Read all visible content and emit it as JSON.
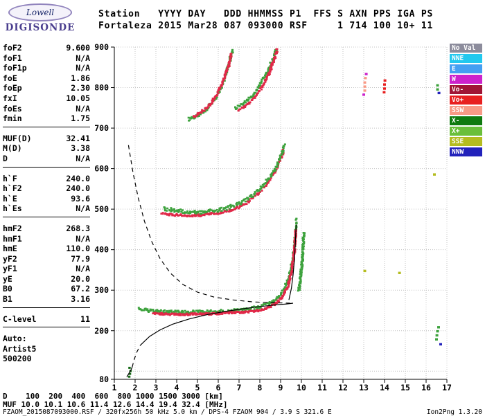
{
  "logo": {
    "line1": "Lowell",
    "line2": "DIGISONDE"
  },
  "header": {
    "line1": "Station   YYYY DAY   DDD HHMMSS P1  FFS S AXN PPS IGA PS",
    "line2": "Fortaleza 2015 Mar28 087 093000 RSF     1 714 100 10+ 11"
  },
  "params": {
    "groups": [
      {
        "rule": true,
        "rows": [
          {
            "l": "foF2",
            "v": "9.600"
          },
          {
            "l": "foF1",
            "v": "N/A"
          },
          {
            "l": "foF1p",
            "v": "N/A"
          },
          {
            "l": "foE",
            "v": "1.86"
          },
          {
            "l": "foEp",
            "v": "2.30"
          },
          {
            "l": "fxI",
            "v": "10.05"
          },
          {
            "l": "foEs",
            "v": "N/A"
          },
          {
            "l": "fmin",
            "v": "1.75"
          }
        ]
      },
      {
        "rule": true,
        "rows": [
          {
            "l": "MUF(D)",
            "v": "32.41"
          },
          {
            "l": "M(D)",
            "v": "3.38"
          },
          {
            "l": "D",
            "v": "N/A"
          }
        ]
      },
      {
        "rule": true,
        "rows": [
          {
            "l": "h`F",
            "v": "240.0"
          },
          {
            "l": "h`F2",
            "v": "240.0"
          },
          {
            "l": "h`E",
            "v": "93.6"
          },
          {
            "l": "h`Es",
            "v": "N/A"
          }
        ]
      },
      {
        "rule": true,
        "rows": [
          {
            "l": "hmF2",
            "v": "268.3"
          },
          {
            "l": "hmF1",
            "v": "N/A"
          },
          {
            "l": "hmE",
            "v": "110.0"
          },
          {
            "l": "yF2",
            "v": "77.9"
          },
          {
            "l": "yF1",
            "v": "N/A"
          },
          {
            "l": "yE",
            "v": "20.0"
          },
          {
            "l": "B0",
            "v": "67.2"
          },
          {
            "l": "B1",
            "v": "3.16"
          }
        ]
      },
      {
        "rule": true,
        "rows": [
          {
            "l": "C-level",
            "v": "11"
          }
        ]
      },
      {
        "rule": false,
        "rows": [
          {
            "l": "Auto:",
            "v": ""
          },
          {
            "l": "Artist5",
            "v": ""
          },
          {
            "l": "500200",
            "v": ""
          }
        ]
      }
    ]
  },
  "legend": {
    "items": [
      {
        "label": "No Val",
        "color": "#8c8c9c"
      },
      {
        "label": "NNE",
        "color": "#22c8ee"
      },
      {
        "label": "E",
        "color": "#449ff2"
      },
      {
        "label": "W",
        "color": "#cc22cc"
      },
      {
        "label": "Vo-",
        "color": "#a01535"
      },
      {
        "label": "Vo+",
        "color": "#e82020"
      },
      {
        "label": "SSW",
        "color": "#f89a86"
      },
      {
        "label": "X-",
        "color": "#0f7a0f"
      },
      {
        "label": "X+",
        "color": "#6abf3a"
      },
      {
        "label": "SSE",
        "color": "#b4bc20"
      },
      {
        "label": "NNW",
        "color": "#2222bb"
      }
    ]
  },
  "bottom": {
    "d_row": "D    100  200  400  600  800 1000 1500 3000 [km]",
    "muf_row": "MUF 10.0 10.1 10.6 11.4 12.6 14.4 19.4 32.4 [MHz]",
    "file_info": "FZAOM_2015087093000.RSF / 320fx256h 50 kHz 5.0 km / DPS-4 FZAOM 904 / 3.9 S 321.6 E",
    "version": "Ion2Png 1.3.20"
  },
  "chart_data": {
    "type": "scatter",
    "title": "Fortaleza digisonde ionogram 2015 Mar28 09:30:00",
    "xlabel": "[MHz]",
    "ylabel": "[km]",
    "xlim": [
      1,
      17
    ],
    "ylim": [
      80,
      900
    ],
    "xticks": [
      1,
      2,
      3,
      4,
      5,
      6,
      7,
      8,
      9,
      10,
      11,
      12,
      13,
      14,
      15,
      16,
      17
    ],
    "grid_y": [
      100,
      200,
      300,
      400,
      500,
      600,
      700,
      800,
      900
    ],
    "ytick_labels": [
      {
        "v": 900,
        "t": "900"
      },
      {
        "v": 800,
        "t": "800"
      },
      {
        "v": 700,
        "t": "700"
      },
      {
        "v": 600,
        "t": "600"
      },
      {
        "v": 500,
        "t": "500"
      },
      {
        "v": 400,
        "t": "400"
      },
      {
        "v": 300,
        "t": "300"
      },
      {
        "v": 200,
        "t": "200"
      },
      {
        "v": 80,
        "t": "80"
      }
    ],
    "grid_color": "#c4c4c4",
    "axis_color": "#000000",
    "muf_table": {
      "distance_km": [
        100,
        200,
        400,
        600,
        800,
        1000,
        1500,
        3000
      ],
      "muf_mhz": [
        10.0,
        10.1,
        10.6,
        11.4,
        12.6,
        14.4,
        19.4,
        32.4
      ]
    },
    "series": [
      {
        "name": "hop1-green",
        "color": "#3da23d",
        "mode": "scatter",
        "spread": 7,
        "step": 0.07,
        "pts": [
          [
            2.2,
            254
          ],
          [
            2.6,
            250
          ],
          [
            3.0,
            248
          ],
          [
            3.6,
            247
          ],
          [
            4.2,
            246
          ],
          [
            5.0,
            247
          ],
          [
            5.8,
            248
          ],
          [
            6.6,
            250
          ],
          [
            7.4,
            254
          ],
          [
            8.0,
            259
          ],
          [
            8.5,
            268
          ],
          [
            8.9,
            283
          ],
          [
            9.2,
            305
          ],
          [
            9.42,
            335
          ],
          [
            9.58,
            372
          ],
          [
            9.68,
            415
          ],
          [
            9.74,
            455
          ],
          [
            9.78,
            478
          ]
        ]
      },
      {
        "name": "hop1-red",
        "color": "#e02848",
        "mode": "scatter",
        "spread": 5,
        "step": 0.055,
        "pts": [
          [
            2.9,
            243
          ],
          [
            3.5,
            241
          ],
          [
            4.2,
            240
          ],
          [
            5.0,
            241
          ],
          [
            5.8,
            242
          ],
          [
            6.6,
            244
          ],
          [
            7.3,
            246
          ],
          [
            7.9,
            250
          ],
          [
            8.4,
            257
          ],
          [
            8.8,
            268
          ],
          [
            9.1,
            285
          ],
          [
            9.35,
            310
          ],
          [
            9.52,
            342
          ],
          [
            9.63,
            380
          ],
          [
            9.7,
            420
          ],
          [
            9.74,
            450
          ]
        ]
      },
      {
        "name": "hop1-xmode-green",
        "color": "#3da23d",
        "mode": "scatter",
        "spread": 5,
        "step": 0.05,
        "pts": [
          [
            9.88,
            300
          ],
          [
            9.97,
            335
          ],
          [
            10.04,
            372
          ],
          [
            10.09,
            410
          ],
          [
            10.12,
            445
          ]
        ]
      },
      {
        "name": "hop2-red",
        "color": "#e02848",
        "mode": "scatter",
        "spread": 6,
        "step": 0.065,
        "pts": [
          [
            3.3,
            489
          ],
          [
            3.9,
            486
          ],
          [
            4.5,
            484
          ],
          [
            5.1,
            485
          ],
          [
            5.7,
            488
          ],
          [
            6.3,
            493
          ],
          [
            6.9,
            503
          ],
          [
            7.4,
            517
          ],
          [
            7.9,
            537
          ],
          [
            8.3,
            560
          ],
          [
            8.7,
            590
          ],
          [
            9.0,
            622
          ],
          [
            9.15,
            648
          ]
        ]
      },
      {
        "name": "hop2-green",
        "color": "#3da23d",
        "mode": "scatter",
        "spread": 9,
        "step": 0.075,
        "pts": [
          [
            3.4,
            501
          ],
          [
            4.0,
            496
          ],
          [
            4.6,
            493
          ],
          [
            5.2,
            493
          ],
          [
            5.8,
            496
          ],
          [
            6.4,
            502
          ],
          [
            7.0,
            513
          ],
          [
            7.5,
            528
          ],
          [
            8.0,
            549
          ],
          [
            8.4,
            573
          ],
          [
            8.8,
            605
          ],
          [
            9.05,
            636
          ],
          [
            9.2,
            661
          ]
        ]
      },
      {
        "name": "hop3-left-green",
        "color": "#3da23d",
        "mode": "scatter",
        "spread": 8,
        "step": 0.06,
        "pts": [
          [
            4.6,
            722
          ],
          [
            5.0,
            730
          ],
          [
            5.4,
            745
          ],
          [
            5.8,
            768
          ],
          [
            6.1,
            796
          ],
          [
            6.35,
            830
          ],
          [
            6.55,
            866
          ],
          [
            6.7,
            895
          ]
        ]
      },
      {
        "name": "hop3-left-red",
        "color": "#e02848",
        "mode": "scatter",
        "spread": 5,
        "step": 0.06,
        "pts": [
          [
            4.8,
            728
          ],
          [
            5.2,
            740
          ],
          [
            5.6,
            758
          ],
          [
            5.95,
            784
          ],
          [
            6.25,
            818
          ],
          [
            6.5,
            855
          ],
          [
            6.65,
            885
          ]
        ]
      },
      {
        "name": "hop3-right-green",
        "color": "#3da23d",
        "mode": "scatter",
        "spread": 8,
        "step": 0.07,
        "pts": [
          [
            6.8,
            748
          ],
          [
            7.2,
            760
          ],
          [
            7.6,
            778
          ],
          [
            7.95,
            802
          ],
          [
            8.3,
            832
          ],
          [
            8.6,
            866
          ],
          [
            8.8,
            896
          ]
        ]
      },
      {
        "name": "hop3-right-red",
        "color": "#e02848",
        "mode": "scatter",
        "spread": 5,
        "step": 0.07,
        "pts": [
          [
            7.0,
            745
          ],
          [
            7.4,
            758
          ],
          [
            7.8,
            778
          ],
          [
            8.15,
            804
          ],
          [
            8.45,
            836
          ],
          [
            8.7,
            870
          ],
          [
            8.85,
            898
          ]
        ]
      },
      {
        "name": "fmin-echo",
        "color": "#156a15",
        "mode": "points",
        "size": 3.5,
        "pts": [
          [
            1.72,
            86
          ],
          [
            1.75,
            93
          ],
          [
            1.78,
            100
          ],
          [
            1.73,
            108
          ]
        ]
      },
      {
        "name": "artifact-ssw",
        "color": "#f89a86",
        "mode": "points",
        "size": 4,
        "pts": [
          [
            13.05,
            792
          ],
          [
            13.05,
            802
          ],
          [
            13.05,
            812
          ],
          [
            13.08,
            823
          ]
        ]
      },
      {
        "name": "artifact-w",
        "color": "#cc22cc",
        "mode": "points",
        "size": 4,
        "pts": [
          [
            13.12,
            833
          ],
          [
            13.0,
            782
          ]
        ]
      },
      {
        "name": "artifact-red",
        "color": "#e82020",
        "mode": "points",
        "size": 4,
        "pts": [
          [
            14.0,
            797
          ],
          [
            14.0,
            807
          ],
          [
            14.02,
            817
          ],
          [
            13.98,
            788
          ]
        ]
      },
      {
        "name": "artifact-green",
        "color": "#3da23d",
        "mode": "points",
        "size": 4,
        "pts": [
          [
            16.55,
            795
          ],
          [
            16.55,
            805
          ],
          [
            16.5,
            178
          ],
          [
            16.52,
            188
          ],
          [
            16.55,
            198
          ],
          [
            16.6,
            208
          ]
        ]
      },
      {
        "name": "artifact-sse",
        "color": "#b4bc20",
        "mode": "points",
        "size": 4,
        "pts": [
          [
            14.72,
            342
          ],
          [
            13.05,
            347
          ],
          [
            16.4,
            585
          ]
        ]
      },
      {
        "name": "artifact-nnw",
        "color": "#2222bb",
        "mode": "points",
        "size": 4,
        "pts": [
          [
            16.62,
            786
          ],
          [
            16.7,
            166
          ]
        ]
      }
    ],
    "lines": [
      {
        "name": "profile-e-solid",
        "dash": false,
        "pts": [
          [
            1.6,
            86
          ],
          [
            1.72,
            96
          ],
          [
            1.8,
            103
          ],
          [
            1.86,
            110
          ]
        ]
      },
      {
        "name": "valley-dashed",
        "dash": true,
        "pts": [
          [
            1.86,
            110
          ],
          [
            1.95,
            128
          ],
          [
            2.08,
            147
          ],
          [
            2.25,
            164
          ]
        ]
      },
      {
        "name": "profile-f-solid",
        "dash": false,
        "pts": [
          [
            2.25,
            164
          ],
          [
            2.7,
            186
          ],
          [
            3.2,
            202
          ],
          [
            3.8,
            216
          ],
          [
            4.6,
            229
          ],
          [
            5.5,
            240
          ],
          [
            6.5,
            249
          ],
          [
            7.6,
            257
          ],
          [
            8.6,
            263
          ],
          [
            9.3,
            266
          ],
          [
            9.6,
            268
          ]
        ]
      },
      {
        "name": "topside-dashed",
        "dash": true,
        "pts": [
          [
            1.68,
            658
          ],
          [
            1.9,
            590
          ],
          [
            2.15,
            528
          ],
          [
            2.45,
            470
          ],
          [
            2.8,
            420
          ],
          [
            3.2,
            378
          ],
          [
            3.7,
            342
          ],
          [
            4.3,
            314
          ],
          [
            5.0,
            295
          ],
          [
            5.8,
            283
          ],
          [
            6.7,
            276
          ],
          [
            7.7,
            271
          ],
          [
            8.7,
            269
          ],
          [
            9.55,
            268
          ]
        ]
      },
      {
        "name": "trace-fit",
        "dash": false,
        "pts": [
          [
            9.4,
            276
          ],
          [
            9.52,
            305
          ],
          [
            9.6,
            338
          ],
          [
            9.66,
            372
          ],
          [
            9.7,
            408
          ],
          [
            9.73,
            442
          ],
          [
            9.75,
            462
          ]
        ]
      }
    ]
  }
}
